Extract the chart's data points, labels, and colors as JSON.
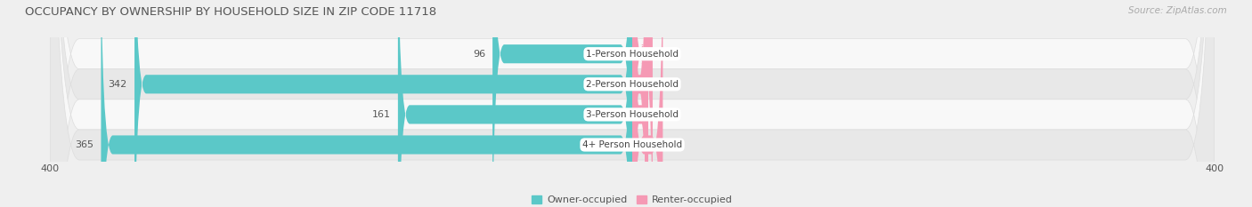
{
  "title": "OCCUPANCY BY OWNERSHIP BY HOUSEHOLD SIZE IN ZIP CODE 11718",
  "source": "Source: ZipAtlas.com",
  "categories": [
    "1-Person Household",
    "2-Person Household",
    "3-Person Household",
    "4+ Person Household"
  ],
  "owner_values": [
    96,
    342,
    161,
    365
  ],
  "renter_values": [
    14,
    10,
    11,
    21
  ],
  "owner_color": "#5BC8C8",
  "renter_color": "#F599B4",
  "bar_height": 0.62,
  "x_max": 400,
  "x_min": -400,
  "bg_color": "#efefef",
  "row_colors": [
    "#f8f8f8",
    "#e8e8e8"
  ],
  "title_fontsize": 9.5,
  "axis_fontsize": 8,
  "bar_label_fontsize": 8,
  "category_fontsize": 7.5,
  "legend_fontsize": 8,
  "source_fontsize": 7.5,
  "text_color": "#888888",
  "label_color": "#555555"
}
